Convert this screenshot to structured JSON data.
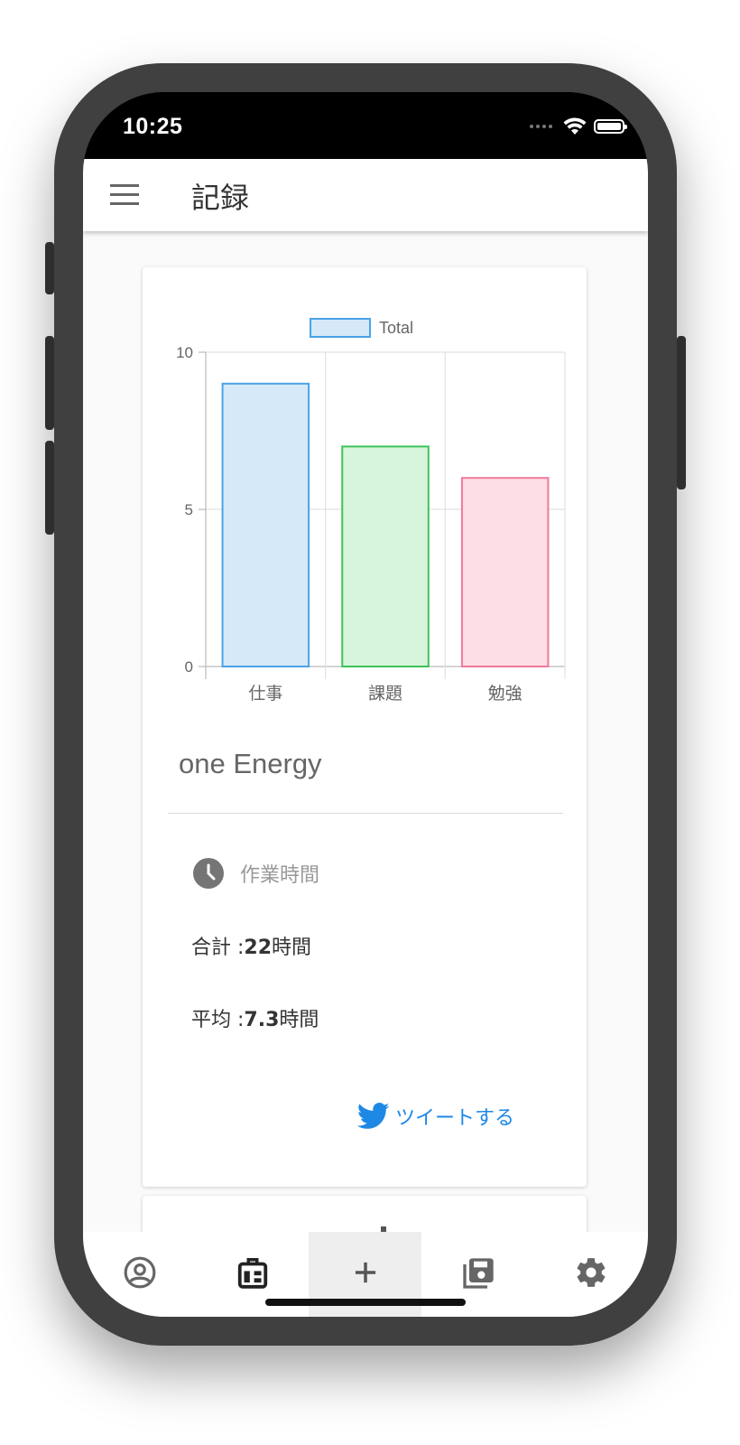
{
  "status": {
    "time": "10:25"
  },
  "toolbar": {
    "title": "記録"
  },
  "chart_data": {
    "type": "bar",
    "categories": [
      "仕事",
      "課題",
      "勉強"
    ],
    "series": [
      {
        "name": "Total",
        "values": [
          9,
          7,
          6
        ]
      }
    ],
    "ylim": [
      0,
      10
    ],
    "yticks": [
      0,
      5,
      10
    ],
    "grid": true,
    "legend": "top-center",
    "colors": {
      "fills": [
        "#d5e9f8",
        "#d7f5dc",
        "#fddde5"
      ],
      "strokes": [
        "#4aa3e8",
        "#3cc35a",
        "#f07a98"
      ],
      "legend_fill": "#d5e9f8",
      "legend_stroke": "#4aa3e8"
    }
  },
  "card": {
    "title": "one Energy",
    "work_label": "作業時間",
    "total_label": "合計 :",
    "total_value": "22",
    "total_unit": "時間",
    "avg_label": "平均 :",
    "avg_value": "7.3",
    "avg_unit": "時間",
    "tweet_label": "ツイートする"
  },
  "bottom_nav": {
    "items": [
      {
        "icon": "account-circle-icon",
        "active": false
      },
      {
        "icon": "chart-bag-icon",
        "active": false
      },
      {
        "icon": "plus-icon",
        "active": true
      },
      {
        "icon": "library-save-icon",
        "active": false
      },
      {
        "icon": "gear-icon",
        "active": false
      }
    ]
  },
  "colors": {
    "accent": "#1e88e5",
    "phone_body": "#404040"
  }
}
